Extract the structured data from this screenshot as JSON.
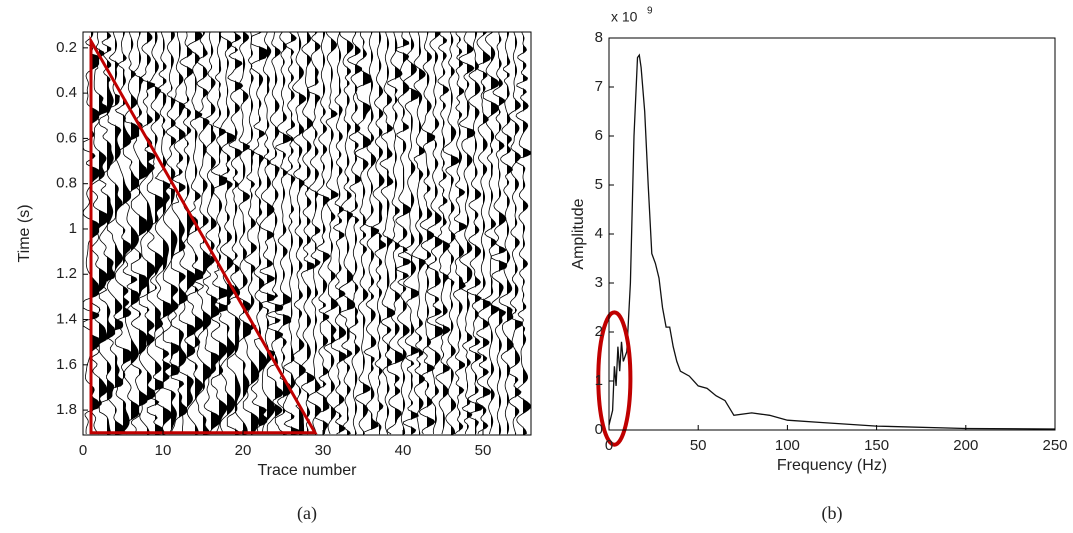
{
  "chart_data": [
    {
      "type": "wiggle",
      "caption": "(a)",
      "x_label": "Trace number",
      "y_label": "Time (s)",
      "xlim": [
        0,
        56
      ],
      "ylim": [
        1.91,
        0.13
      ],
      "xticks": [
        0,
        10,
        20,
        30,
        40,
        50
      ],
      "yticks": [
        0.2,
        0.4,
        0.6,
        0.8,
        1,
        1.2,
        1.4,
        1.6,
        1.8
      ],
      "annotation": {
        "shape": "triangle",
        "color": "#c00000",
        "x": [
          1,
          1,
          29
        ],
        "y": [
          0.17,
          1.9,
          1.9
        ]
      }
    },
    {
      "type": "line",
      "caption": "(b)",
      "x_label": "Frequency (Hz)",
      "y_label": "Amplitude",
      "y_multiplier": {
        "base": "x 10",
        "exponent": "9"
      },
      "xlim": [
        0,
        250
      ],
      "ylim": [
        0,
        8
      ],
      "xticks": [
        0,
        50,
        100,
        150,
        200,
        250
      ],
      "yticks": [
        0,
        1,
        2,
        3,
        4,
        5,
        6,
        7,
        8
      ],
      "x": [
        0,
        2,
        3,
        4,
        5,
        6,
        7,
        8,
        10,
        12,
        14,
        16,
        17,
        18,
        20,
        22,
        24,
        26,
        28,
        30,
        32,
        34,
        36,
        38,
        40,
        45,
        50,
        55,
        60,
        65,
        70,
        80,
        90,
        100,
        120,
        150,
        200,
        250
      ],
      "series": [
        {
          "color": "#111111",
          "values": [
            0.1,
            0.4,
            1.3,
            0.9,
            1.7,
            1.2,
            1.8,
            1.4,
            1.6,
            3,
            6,
            7.6,
            7.65,
            7.4,
            6.5,
            5,
            3.6,
            3.4,
            3.1,
            2.5,
            2.1,
            2.1,
            1.7,
            1.4,
            1.2,
            1.1,
            0.9,
            0.85,
            0.7,
            0.6,
            0.3,
            0.35,
            0.3,
            0.2,
            0.15,
            0.08,
            0.03,
            0.02
          ]
        }
      ],
      "annotation": {
        "shape": "ellipse",
        "color": "#c00000",
        "cx": 3,
        "cy": 1.05,
        "rx": 9,
        "ry": 1.35
      }
    }
  ]
}
